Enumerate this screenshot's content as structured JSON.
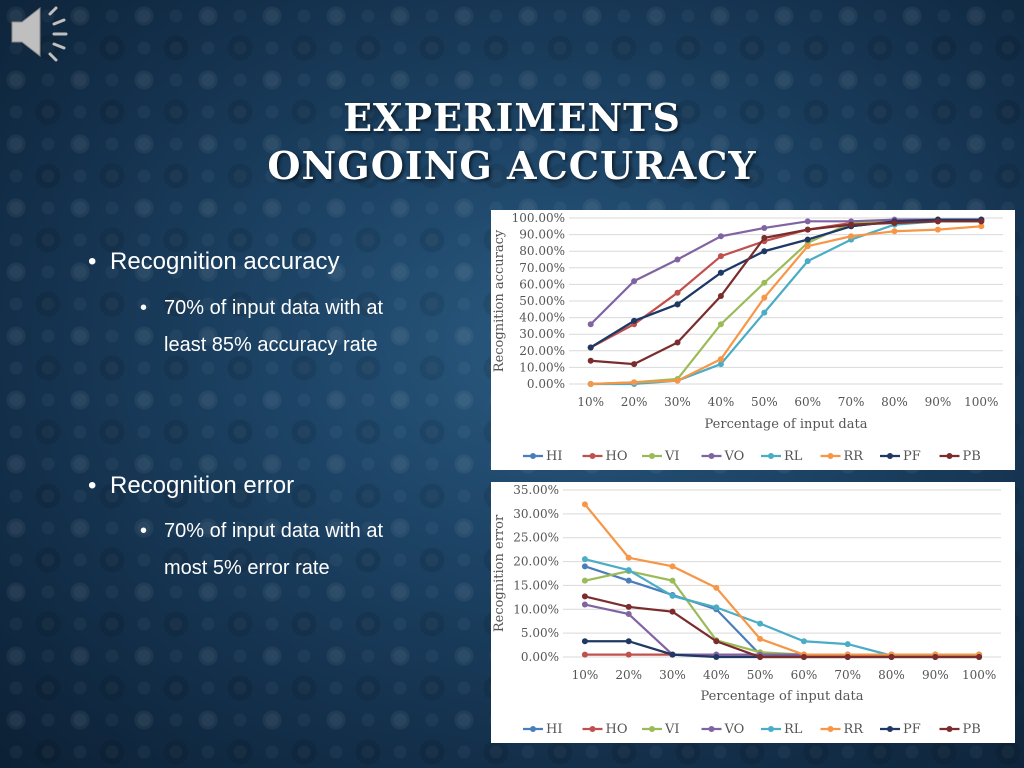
{
  "slide": {
    "title_line1": "EXPERIMENTS",
    "title_line2": "ONGOING ACCURACY"
  },
  "icons": {
    "audio": "speaker-icon"
  },
  "bullets": [
    {
      "text": "Recognition accuracy",
      "sub": [
        "70% of input data with at",
        "least 85% accuracy rate"
      ]
    },
    {
      "text": "Recognition error",
      "sub": [
        "70% of input data with at",
        "most 5% error rate"
      ]
    }
  ],
  "colors": {
    "HI": "#4a7ebb",
    "HO": "#c0504d",
    "VI": "#9bbb59",
    "VO": "#8064a2",
    "RL": "#4bacc6",
    "RR": "#f79646",
    "PF": "#1f3864",
    "PB": "#7b2c2c"
  },
  "chart_data": [
    {
      "type": "line",
      "xlabel": "Percentage of input data",
      "ylabel": "Recognition accuracy",
      "ylim": [
        0,
        100
      ],
      "yticks": [
        "0.00%",
        "10.00%",
        "20.00%",
        "30.00%",
        "40.00%",
        "50.00%",
        "60.00%",
        "70.00%",
        "80.00%",
        "90.00%",
        "100.00%"
      ],
      "categories": [
        "10%",
        "20%",
        "30%",
        "40%",
        "50%",
        "60%",
        "70%",
        "80%",
        "90%",
        "100%"
      ],
      "legend_position": "bottom",
      "series": [
        {
          "name": "HI",
          "values": [
            22,
            38,
            48,
            67,
            80,
            87,
            95,
            98,
            99,
            99
          ]
        },
        {
          "name": "HO",
          "values": [
            22,
            36,
            55,
            77,
            86,
            93,
            97,
            98,
            99,
            99
          ]
        },
        {
          "name": "VI",
          "values": [
            0,
            1,
            3,
            36,
            61,
            85,
            97,
            98,
            99,
            99
          ]
        },
        {
          "name": "VO",
          "values": [
            36,
            62,
            75,
            89,
            94,
            98,
            98,
            99,
            99,
            99
          ]
        },
        {
          "name": "RL",
          "values": [
            0,
            0,
            2,
            12,
            43,
            74,
            87,
            96,
            98,
            98
          ]
        },
        {
          "name": "RR",
          "values": [
            0,
            1,
            2,
            15,
            52,
            83,
            89,
            92,
            93,
            95
          ]
        },
        {
          "name": "PF",
          "values": [
            22,
            38,
            48,
            67,
            80,
            87,
            95,
            98,
            99,
            99
          ]
        },
        {
          "name": "PB",
          "values": [
            14,
            12,
            25,
            53,
            88,
            93,
            96,
            97,
            98,
            98
          ]
        }
      ]
    },
    {
      "type": "line",
      "xlabel": "Percentage of input data",
      "ylabel": "Recognition error",
      "ylim": [
        0,
        35
      ],
      "yticks": [
        "0.00%",
        "5.00%",
        "10.00%",
        "15.00%",
        "20.00%",
        "25.00%",
        "30.00%",
        "35.00%"
      ],
      "categories": [
        "10%",
        "20%",
        "30%",
        "40%",
        "50%",
        "60%",
        "70%",
        "80%",
        "90%",
        "100%"
      ],
      "legend_position": "bottom",
      "series": [
        {
          "name": "HI",
          "values": [
            19,
            16,
            13,
            10,
            0.5,
            0.3,
            0.3,
            0.3,
            0.3,
            0.3
          ]
        },
        {
          "name": "HO",
          "values": [
            0.5,
            0.5,
            0.5,
            0.5,
            0.5,
            0.5,
            0.5,
            0.5,
            0.5,
            0.5
          ]
        },
        {
          "name": "VI",
          "values": [
            16,
            18,
            16,
            3.5,
            1,
            0.5,
            0.5,
            0.5,
            0.5,
            0.5
          ]
        },
        {
          "name": "VO",
          "values": [
            11,
            9,
            0.5,
            0.5,
            0.5,
            0.5,
            0.5,
            0.5,
            0.5,
            0.5
          ]
        },
        {
          "name": "RL",
          "values": [
            20.5,
            18.2,
            12.8,
            10.4,
            7,
            3.3,
            2.7,
            0.3,
            0.3,
            0.3
          ]
        },
        {
          "name": "RR",
          "values": [
            32,
            20.8,
            19,
            14.5,
            3.8,
            0.5,
            0.5,
            0.5,
            0.5,
            0.5
          ]
        },
        {
          "name": "PF",
          "values": [
            3.3,
            3.3,
            0.5,
            0,
            0,
            0,
            0,
            0,
            0,
            0
          ]
        },
        {
          "name": "PB",
          "values": [
            12.7,
            10.5,
            9.5,
            3.3,
            0,
            0,
            0,
            0,
            0,
            0
          ]
        }
      ]
    }
  ]
}
